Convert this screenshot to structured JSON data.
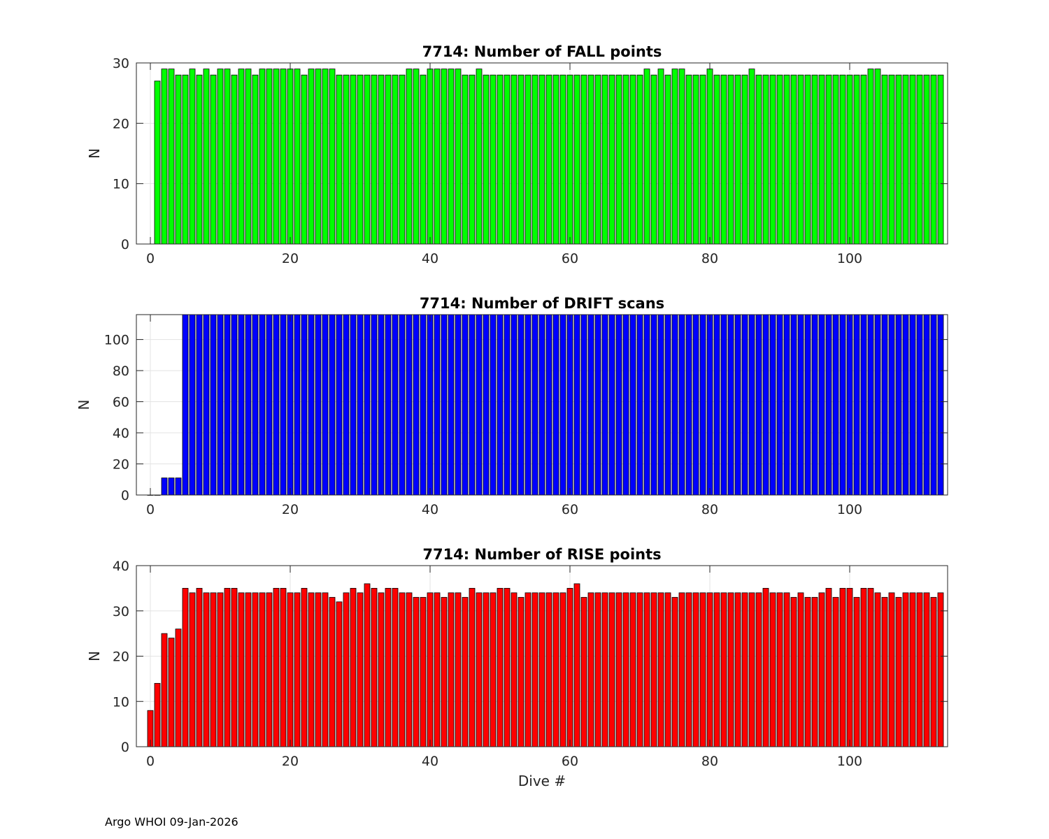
{
  "footer": "Argo WHOI 09-Jan-2026",
  "chart_data": [
    {
      "type": "bar",
      "title": "7714: Number of FALL points",
      "xlabel": "",
      "ylabel": "N",
      "xlim": [
        -2,
        114
      ],
      "ylim": [
        0,
        30
      ],
      "xticks": [
        0,
        20,
        40,
        60,
        80,
        100
      ],
      "yticks": [
        0,
        10,
        20,
        30
      ],
      "grid": true,
      "color": "#00ff00",
      "x_start": 1,
      "values": [
        27,
        29,
        29,
        28,
        28,
        29,
        28,
        29,
        28,
        29,
        29,
        28,
        29,
        29,
        28,
        29,
        29,
        29,
        29,
        29,
        29,
        28,
        29,
        29,
        29,
        29,
        28,
        28,
        28,
        28,
        28,
        28,
        28,
        28,
        28,
        28,
        29,
        29,
        28,
        29,
        29,
        29,
        29,
        29,
        28,
        28,
        29,
        28,
        28,
        28,
        28,
        28,
        28,
        28,
        28,
        28,
        28,
        28,
        28,
        28,
        28,
        28,
        28,
        28,
        28,
        28,
        28,
        28,
        28,
        28,
        29,
        28,
        29,
        28,
        29,
        29,
        28,
        28,
        28,
        29,
        28,
        28,
        28,
        28,
        28,
        29,
        28,
        28,
        28,
        28,
        28,
        28,
        28,
        28,
        28,
        28,
        28,
        28,
        28,
        28,
        28,
        28,
        29,
        29,
        28,
        28,
        28,
        28,
        28,
        28,
        28,
        28,
        28
      ]
    },
    {
      "type": "bar",
      "title": "7714: Number of DRIFT scans",
      "xlabel": "",
      "ylabel": "N",
      "xlim": [
        -2,
        114
      ],
      "ylim": [
        0,
        116
      ],
      "xticks": [
        0,
        20,
        40,
        60,
        80,
        100
      ],
      "yticks": [
        0,
        20,
        40,
        60,
        80,
        100
      ],
      "grid": true,
      "color": "#0000ff",
      "x_start": 0,
      "values": [
        0,
        0,
        11,
        11,
        11,
        116,
        116,
        116,
        116,
        116,
        116,
        116,
        116,
        116,
        116,
        116,
        116,
        116,
        116,
        116,
        116,
        116,
        116,
        116,
        116,
        116,
        116,
        116,
        116,
        116,
        116,
        116,
        116,
        116,
        116,
        116,
        116,
        116,
        116,
        116,
        116,
        116,
        116,
        116,
        116,
        116,
        116,
        116,
        116,
        116,
        116,
        116,
        116,
        116,
        116,
        116,
        116,
        116,
        116,
        116,
        116,
        116,
        116,
        116,
        116,
        116,
        116,
        116,
        116,
        116,
        116,
        116,
        116,
        116,
        116,
        116,
        116,
        116,
        116,
        116,
        116,
        116,
        116,
        116,
        116,
        116,
        116,
        116,
        116,
        116,
        116,
        116,
        116,
        116,
        116,
        116,
        116,
        116,
        116,
        116,
        116,
        116,
        116,
        116,
        116,
        116,
        116,
        116,
        116,
        116,
        116,
        116,
        116,
        116
      ]
    },
    {
      "type": "bar",
      "title": "7714: Number of RISE points",
      "xlabel": "Dive #",
      "ylabel": "N",
      "xlim": [
        -2,
        114
      ],
      "ylim": [
        0,
        40
      ],
      "xticks": [
        0,
        20,
        40,
        60,
        80,
        100
      ],
      "yticks": [
        0,
        10,
        20,
        30,
        40
      ],
      "grid": true,
      "color": "#ff0000",
      "x_start": 0,
      "values": [
        8,
        14,
        25,
        24,
        26,
        35,
        34,
        35,
        34,
        34,
        34,
        35,
        35,
        34,
        34,
        34,
        34,
        34,
        35,
        35,
        34,
        34,
        35,
        34,
        34,
        34,
        33,
        32,
        34,
        35,
        34,
        36,
        35,
        34,
        35,
        35,
        34,
        34,
        33,
        33,
        34,
        34,
        33,
        34,
        34,
        33,
        35,
        34,
        34,
        34,
        35,
        35,
        34,
        33,
        34,
        34,
        34,
        34,
        34,
        34,
        35,
        36,
        33,
        34,
        34,
        34,
        34,
        34,
        34,
        34,
        34,
        34,
        34,
        34,
        34,
        33,
        34,
        34,
        34,
        34,
        34,
        34,
        34,
        34,
        34,
        34,
        34,
        34,
        35,
        34,
        34,
        34,
        33,
        34,
        33,
        33,
        34,
        35,
        33,
        35,
        35,
        33,
        35,
        35,
        34,
        33,
        34,
        33,
        34,
        34,
        34,
        34,
        33,
        34
      ]
    }
  ]
}
